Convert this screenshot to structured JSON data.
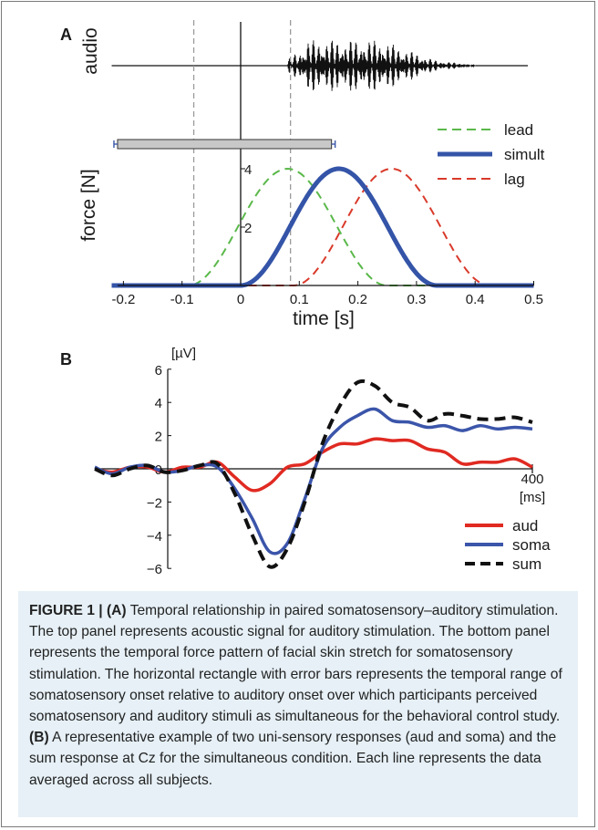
{
  "chart_data": [
    {
      "panel_label": "A",
      "type": "line",
      "xlabel": "time [s]",
      "ylabel": "force [N]",
      "audio_label": "audio",
      "xlim": [
        -0.24,
        0.5
      ],
      "ylim": [
        0,
        4
      ],
      "x_ticks": [
        "-0.2",
        "-0.1",
        "0",
        "0.1",
        "0.2",
        "0.3",
        "0.4",
        "0.5"
      ],
      "x_tick_values": [
        -0.2,
        -0.1,
        0,
        0.1,
        0.2,
        0.3,
        0.4,
        0.5
      ],
      "y_ticks": [
        "2",
        "4"
      ],
      "y_tick_values": [
        2,
        4
      ],
      "dashed_lines_x": [
        -0.08,
        0.085
      ],
      "range_bar": [
        -0.21,
        0.155
      ],
      "audio_burst": [
        0.08,
        0.4
      ],
      "legend_position": "top-right",
      "series": [
        {
          "name": "lead",
          "color": "#5ab84a",
          "dash": true,
          "start": -0.09,
          "end": 0.25,
          "peak": 4
        },
        {
          "name": "simult",
          "color": "#3454a8",
          "dash": false,
          "start": 0,
          "end": 0.335,
          "peak": 4
        },
        {
          "name": "lag",
          "color": "#d93a2b",
          "dash": true,
          "start": 0.09,
          "end": 0.425,
          "peak": 4
        }
      ]
    },
    {
      "panel_label": "B",
      "type": "line",
      "ylabel": "[µV]",
      "x_end_label": "400",
      "x_unit_label": "[ms]",
      "xlim": [
        -100,
        400
      ],
      "ylim": [
        -6,
        6
      ],
      "y_ticks": [
        "6",
        "4",
        "2",
        "0",
        "−2",
        "−4",
        "−6"
      ],
      "y_tick_values": [
        6,
        4,
        2,
        0,
        -2,
        -4,
        -6
      ],
      "legend_position": "bottom-right",
      "x": [
        -100,
        -80,
        -60,
        -40,
        -20,
        0,
        20,
        40,
        60,
        80,
        100,
        120,
        140,
        160,
        180,
        200,
        220,
        240,
        260,
        280,
        300,
        320,
        340,
        360,
        380,
        400
      ],
      "series": [
        {
          "name": "aud",
          "color": "#e02a22",
          "dash": false,
          "values": [
            0.0,
            -0.2,
            0.1,
            0.1,
            -0.2,
            0.1,
            0.1,
            0.4,
            -0.5,
            -1.3,
            -0.9,
            0.1,
            0.3,
            1.0,
            1.5,
            1.5,
            1.8,
            1.7,
            1.7,
            1.2,
            1.0,
            0.3,
            0.4,
            0.4,
            0.6,
            0.1
          ]
        },
        {
          "name": "soma",
          "color": "#3b55aa",
          "dash": false,
          "values": [
            0.1,
            -0.3,
            0.1,
            0.2,
            -0.2,
            -0.1,
            0.2,
            0.1,
            -1.2,
            -3.0,
            -5.0,
            -4.5,
            -1.8,
            1.2,
            2.5,
            3.2,
            3.6,
            2.9,
            2.8,
            2.5,
            2.6,
            2.3,
            2.6,
            2.4,
            2.5,
            2.4
          ]
        },
        {
          "name": "sum",
          "color": "#111111",
          "dash": true,
          "values": [
            0.0,
            -0.4,
            0.0,
            0.2,
            -0.2,
            -0.1,
            0.2,
            0.3,
            -1.5,
            -4.0,
            -5.9,
            -4.8,
            -2.0,
            1.5,
            3.8,
            5.2,
            5.0,
            4.0,
            3.7,
            2.9,
            3.3,
            3.2,
            3.0,
            3.0,
            3.1,
            2.8
          ]
        }
      ]
    }
  ],
  "caption": {
    "figure_label": "FIGURE 1 |",
    "label_a": "(A)",
    "text_a": "Temporal relationship in paired somatosensory–auditory stimulation. The top panel represents acoustic signal for auditory stimulation. The bottom panel represents the temporal force pattern of facial skin stretch for somatosensory stimulation. The horizontal rectangle with error bars represents the temporal range of somatosensory onset relative to auditory onset over which participants perceived somatosensory and auditory stimuli as simultaneous for the behavioral control study.",
    "label_b": "(B)",
    "text_b": "A representative example of two uni-sensory responses (aud and soma) and the sum response at Cz for the simultaneous condition. Each line represents the data averaged across all subjects."
  }
}
